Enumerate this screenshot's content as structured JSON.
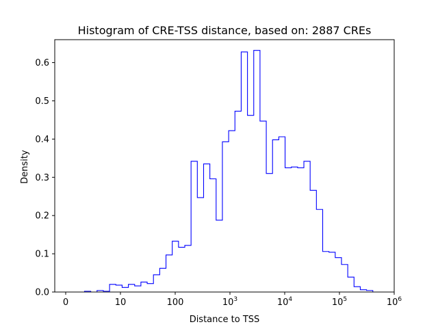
{
  "chart_data": {
    "type": "histogram",
    "title": "Histogram of CRE-TSS distance, based on: 2887 CREs",
    "xlabel": "Distance to TSS",
    "ylabel": "Density",
    "x_scale": "symlog",
    "xlim": [
      -2,
      1000000
    ],
    "ylim": [
      0,
      0.66
    ],
    "grid": false,
    "line_color": "#0000ff",
    "x_ticks": [
      {
        "value": 0,
        "label": "0"
      },
      {
        "value": 10,
        "label": "10"
      },
      {
        "value": 100,
        "label": "100"
      },
      {
        "value": 1000,
        "label": "10",
        "exponent": "3"
      },
      {
        "value": 10000,
        "label": "10",
        "exponent": "4"
      },
      {
        "value": 100000,
        "label": "10",
        "exponent": "5"
      },
      {
        "value": 1000000,
        "label": "10",
        "exponent": "6"
      }
    ],
    "y_ticks": [
      {
        "value": 0.0,
        "label": "0.0"
      },
      {
        "value": 0.1,
        "label": "0.1"
      },
      {
        "value": 0.2,
        "label": "0.2"
      },
      {
        "value": 0.3,
        "label": "0.3"
      },
      {
        "value": 0.4,
        "label": "0.4"
      },
      {
        "value": 0.5,
        "label": "0.5"
      },
      {
        "value": 0.6,
        "label": "0.6"
      }
    ],
    "bins": {
      "x_start": 0,
      "x_end": 407000,
      "densities": [
        0.0,
        0.0,
        0.0,
        0.002,
        0.0,
        0.004,
        0.002,
        0.02,
        0.018,
        0.012,
        0.02,
        0.016,
        0.026,
        0.022,
        0.045,
        0.062,
        0.097,
        0.133,
        0.117,
        0.122,
        0.342,
        0.247,
        0.335,
        0.296,
        0.188,
        0.393,
        0.422,
        0.473,
        0.628,
        0.462,
        0.632,
        0.447,
        0.31,
        0.398,
        0.406,
        0.325,
        0.327,
        0.325,
        0.342,
        0.266,
        0.216,
        0.106,
        0.104,
        0.09,
        0.072,
        0.039,
        0.014,
        0.006,
        0.004
      ]
    }
  }
}
